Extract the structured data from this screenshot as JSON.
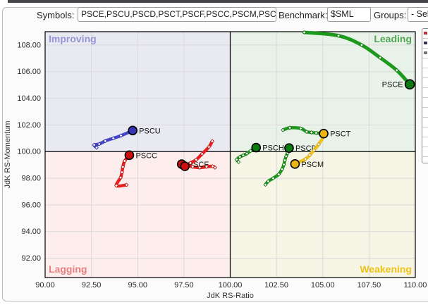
{
  "toolbar": {
    "symbols_label": "Symbols:",
    "symbols_value": "PSCE,PSCU,PSCD,PSCT,PSCF,PSCC,PSCM,PSC",
    "benchmark_label": "Benchmark:",
    "benchmark_value": "$SML",
    "groups_label": "Groups:",
    "groups_value": "- Sel"
  },
  "chart_data": {
    "type": "scatter",
    "xlabel": "JdK RS-Ratio",
    "ylabel": "JdK RS-Momentum",
    "xlim": [
      90,
      110
    ],
    "ylim": [
      90.55,
      109.0
    ],
    "xticks": [
      90.0,
      92.5,
      95.0,
      97.5,
      100.0,
      102.5,
      105.0,
      107.5,
      110.0
    ],
    "yticks": [
      92.0,
      94.0,
      96.0,
      98.0,
      100.0,
      102.0,
      104.0,
      106.0,
      108.0
    ],
    "center_x": 100,
    "center_y": 100,
    "quadrants": [
      {
        "name": "Improving",
        "position": "top-left",
        "bg": "#e9e9f2",
        "label_color": "#9595d6"
      },
      {
        "name": "Leading",
        "position": "top-right",
        "bg": "#e9f2e9",
        "label_color": "#53a653"
      },
      {
        "name": "Lagging",
        "position": "bottom-left",
        "bg": "#fdeded",
        "label_color": "#ea8080"
      },
      {
        "name": "Weakening",
        "position": "bottom-right",
        "bg": "#f7f5e6",
        "label_color": "#edc318"
      }
    ],
    "series": [
      {
        "name": "PSCE",
        "label": "PSCE",
        "label_side": "left",
        "trail_color": "#1d9a1d",
        "dot_color": "#0c7c12",
        "marker_stroke": "#0a6b0a",
        "width": 5,
        "dot_r": 6.5,
        "points": [
          [
            104.0,
            108.95
          ],
          [
            105.85,
            108.7
          ],
          [
            107.1,
            108.0
          ],
          [
            108.1,
            107.05
          ],
          [
            109.0,
            106.1
          ],
          [
            109.7,
            105.05
          ]
        ]
      },
      {
        "name": "PSCU",
        "label": "PSCU",
        "label_side": "right",
        "trail_color": "#4444cd",
        "dot_color": "#3434b4",
        "marker_stroke": "#25259a",
        "width": 4.5,
        "dot_r": 6,
        "points": [
          [
            92.78,
            100.3
          ],
          [
            92.65,
            100.5
          ],
          [
            92.92,
            100.57
          ],
          [
            93.25,
            100.8
          ],
          [
            93.68,
            101.0
          ],
          [
            94.1,
            101.2
          ],
          [
            94.73,
            101.58
          ]
        ]
      },
      {
        "name": "PSCC",
        "label": "PSCC",
        "label_side": "right",
        "trail_color": "#e62020",
        "dot_color": "#cf0f0f",
        "marker_stroke": "#b01414",
        "width": 4.5,
        "dot_r": 6,
        "points": [
          [
            94.4,
            97.5
          ],
          [
            93.85,
            97.45
          ],
          [
            94.08,
            98.05
          ],
          [
            94.15,
            98.45
          ],
          [
            94.2,
            98.85
          ],
          [
            94.3,
            99.3
          ],
          [
            94.55,
            99.73
          ]
        ]
      },
      {
        "name": "PSCF",
        "label": "PSCF",
        "label_side": "right",
        "trail_color": "#e62020",
        "dot_color": "#cf0f0f",
        "marker_stroke": "#b01414",
        "width": 4.5,
        "dot_r": 6,
        "points": [
          [
            99.18,
            98.8
          ],
          [
            99.05,
            98.9
          ],
          [
            98.72,
            98.86
          ],
          [
            98.35,
            98.8
          ],
          [
            97.97,
            98.86
          ],
          [
            97.38,
            99.06
          ]
        ]
      },
      {
        "name": "PSC",
        "label": "",
        "label_side": "right",
        "trail_color": "#e62020",
        "dot_color": "#cf0f0f",
        "marker_stroke": "#b01414",
        "width": 4.5,
        "dot_r": 6,
        "points": [
          [
            99.03,
            100.78
          ],
          [
            98.85,
            100.35
          ],
          [
            98.48,
            99.83
          ],
          [
            98.16,
            99.39
          ],
          [
            97.85,
            99.15
          ],
          [
            97.55,
            98.9
          ]
        ]
      },
      {
        "name": "PSCH",
        "label": "PSCH",
        "label_side": "right",
        "trail_color": "#1d9a1d",
        "dot_color": "#0c7c12",
        "marker_stroke": "#0a6b0a",
        "width": 4.5,
        "dot_r": 6,
        "points": [
          [
            100.45,
            99.22
          ],
          [
            100.35,
            99.4
          ],
          [
            100.52,
            99.6
          ],
          [
            100.7,
            99.72
          ],
          [
            100.9,
            99.85
          ],
          [
            101.1,
            100.05
          ],
          [
            101.4,
            100.3
          ]
        ]
      },
      {
        "name": "PSCD",
        "label": "PSCD",
        "label_side": "right",
        "trail_color": "#1d9a1d",
        "dot_color": "#0c7c12",
        "marker_stroke": "#0a6b0a",
        "width": 4.5,
        "dot_r": 6,
        "points": [
          [
            101.9,
            97.52
          ],
          [
            102.05,
            97.77
          ],
          [
            102.32,
            98.0
          ],
          [
            102.62,
            98.3
          ],
          [
            102.8,
            98.68
          ],
          [
            102.9,
            99.03
          ],
          [
            102.95,
            99.35
          ],
          [
            103.02,
            99.65
          ],
          [
            103.1,
            99.9
          ],
          [
            103.18,
            100.27
          ]
        ]
      },
      {
        "name": "PSCT",
        "label": "PSCT",
        "label_side": "right",
        "trail_color": "#1d9a1d",
        "dot_color": "#eab511",
        "marker_stroke": "#0a6b0a",
        "width": 4.5,
        "dot_r": 6,
        "dot_on_top": true,
        "points": [
          [
            102.85,
            101.62
          ],
          [
            103.22,
            101.79
          ],
          [
            103.81,
            101.74
          ],
          [
            104.13,
            101.49
          ],
          [
            104.39,
            101.44
          ],
          [
            104.64,
            101.4
          ],
          [
            105.05,
            101.35
          ]
        ]
      },
      {
        "name": "PSCM",
        "label": "PSCM",
        "label_side": "right",
        "trail_color": "#f2c31b",
        "dot_color": "#eab511",
        "marker_stroke": "#c29200",
        "width": 4.5,
        "dot_r": 6,
        "points": [
          [
            105.12,
            101.28
          ],
          [
            104.78,
            100.55
          ],
          [
            104.52,
            100.1
          ],
          [
            104.3,
            99.74
          ],
          [
            104.06,
            99.44
          ],
          [
            103.5,
            99.07
          ]
        ]
      }
    ]
  }
}
